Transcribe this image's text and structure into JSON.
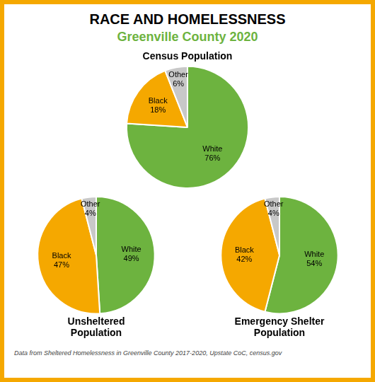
{
  "title": "RACE AND HOMELESSNESS",
  "subtitle": "Greenville County 2020",
  "annotations": [
    "Data from Sheltered Homelessness in Greenville County 2017-2020, Upstate CoC, census.gov"
  ],
  "chart_data": [
    {
      "type": "pie",
      "title": "Census Population",
      "categories": [
        "White",
        "Black",
        "Other"
      ],
      "values": [
        76,
        18,
        6
      ],
      "value_labels": [
        "76%",
        "18%",
        "6%"
      ],
      "data_labels": true,
      "colors": [
        "#6db33f",
        "#f5a800",
        "#c8c8c8"
      ]
    },
    {
      "type": "pie",
      "title": [
        "Unsheltered",
        "Population"
      ],
      "categories": [
        "White",
        "Black",
        "Other"
      ],
      "values": [
        49,
        47,
        4
      ],
      "value_labels": [
        "49%",
        "47%",
        "4%"
      ],
      "data_labels": true,
      "colors": [
        "#6db33f",
        "#f5a800",
        "#c8c8c8"
      ]
    },
    {
      "type": "pie",
      "title": [
        "Emergency Shelter",
        "Population"
      ],
      "categories": [
        "White",
        "Black",
        "Other"
      ],
      "values": [
        54,
        42,
        4
      ],
      "value_labels": [
        "54%",
        "42%",
        "4%"
      ],
      "data_labels": true,
      "colors": [
        "#6db33f",
        "#f5a800",
        "#c8c8c8"
      ]
    }
  ]
}
